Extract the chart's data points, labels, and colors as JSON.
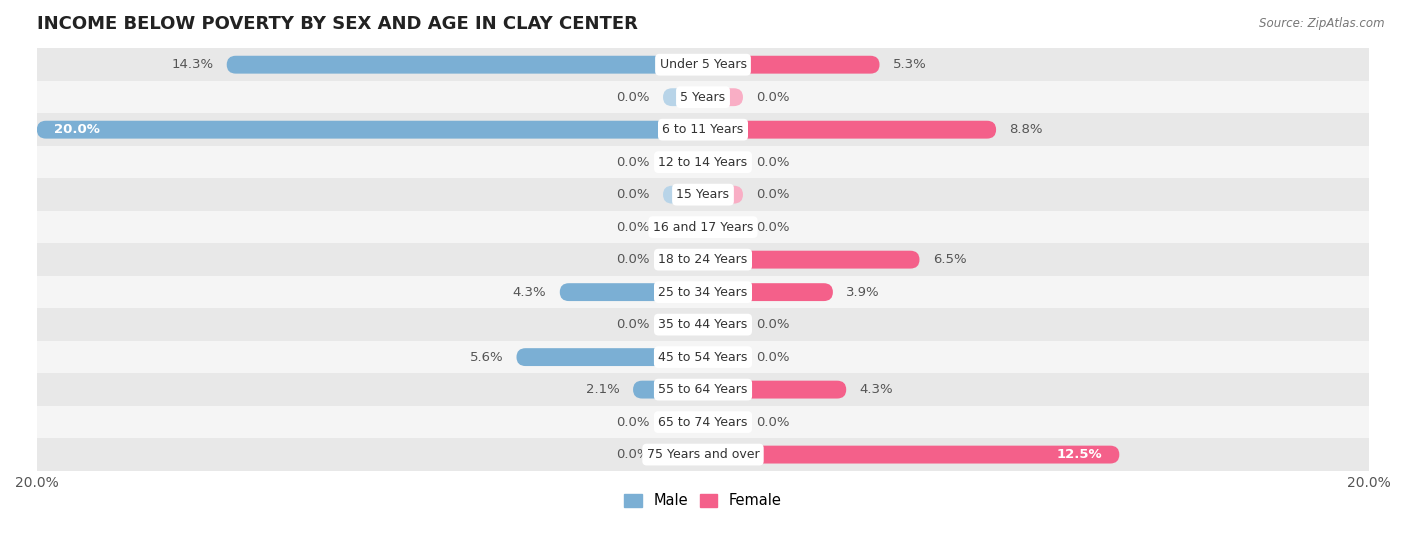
{
  "title": "INCOME BELOW POVERTY BY SEX AND AGE IN CLAY CENTER",
  "source": "Source: ZipAtlas.com",
  "categories": [
    "Under 5 Years",
    "5 Years",
    "6 to 11 Years",
    "12 to 14 Years",
    "15 Years",
    "16 and 17 Years",
    "18 to 24 Years",
    "25 to 34 Years",
    "35 to 44 Years",
    "45 to 54 Years",
    "55 to 64 Years",
    "65 to 74 Years",
    "75 Years and over"
  ],
  "male": [
    14.3,
    0.0,
    20.0,
    0.0,
    0.0,
    0.0,
    0.0,
    4.3,
    0.0,
    5.6,
    2.1,
    0.0,
    0.0
  ],
  "female": [
    5.3,
    0.0,
    8.8,
    0.0,
    0.0,
    0.0,
    6.5,
    3.9,
    0.0,
    0.0,
    4.3,
    0.0,
    12.5
  ],
  "male_color": "#7bafd4",
  "male_stub_color": "#b8d4e8",
  "female_color": "#f4608a",
  "female_stub_color": "#f9aec5",
  "male_label": "Male",
  "female_label": "Female",
  "x_max": 20.0,
  "background_row_even": "#e8e8e8",
  "background_row_odd": "#f5f5f5",
  "bar_height": 0.55,
  "stub_value": 1.2,
  "title_fontsize": 13,
  "tick_fontsize": 10,
  "label_fontsize": 9.5,
  "cat_fontsize": 9,
  "axis_label_color": "#555555"
}
